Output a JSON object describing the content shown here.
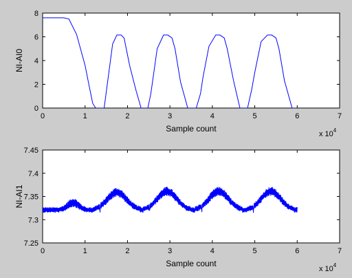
{
  "colors": {
    "background": "#cccccc",
    "axes": "#ffffff",
    "series": "#0000ff",
    "text": "#000000"
  },
  "chart_data": [
    {
      "type": "line",
      "ylabel": "NI-AI0",
      "xlabel": "Sample count",
      "x_multiplier": {
        "base": "x 10",
        "exponent": "4"
      },
      "xlim": [
        0,
        7
      ],
      "ylim": [
        0,
        8
      ],
      "xticks": [
        0,
        1,
        2,
        3,
        4,
        5,
        6,
        7
      ],
      "xtick_labels": [
        "0",
        "1",
        "2",
        "3",
        "4",
        "5",
        "6",
        "7"
      ],
      "yticks": [
        0,
        2,
        4,
        6,
        8
      ],
      "ytick_labels": [
        "0",
        "2",
        "4",
        "6",
        "8"
      ],
      "grid": false,
      "series": [
        {
          "x": [
            0,
            0.5,
            0.62,
            0.8,
            1.0,
            1.1,
            1.18,
            1.25,
            1.3,
            1.45,
            1.65,
            1.75,
            1.85,
            1.92,
            2.05,
            2.2,
            2.32,
            2.38,
            2.48,
            2.55,
            2.7,
            2.85,
            2.95,
            3.05,
            3.12,
            3.25,
            3.42,
            3.55,
            3.62,
            3.72,
            3.78,
            3.92,
            4.08,
            4.18,
            4.28,
            4.35,
            4.5,
            4.65,
            4.77,
            4.83,
            4.93,
            5.0,
            5.15,
            5.3,
            5.4,
            5.5,
            5.57,
            5.7,
            5.88,
            5.9,
            5.98
          ],
          "y": [
            7.6,
            7.6,
            7.5,
            6.2,
            3.6,
            1.8,
            0.4,
            0.0,
            0.0,
            0.0,
            5.4,
            6.15,
            6.15,
            5.9,
            3.6,
            1.5,
            0.0,
            0.0,
            0.0,
            1.2,
            5.0,
            6.15,
            6.15,
            5.9,
            5.0,
            2.2,
            0.0,
            0.0,
            0.0,
            1.2,
            2.6,
            5.2,
            6.15,
            6.15,
            5.9,
            5.0,
            2.3,
            0.0,
            0.0,
            0.0,
            1.6,
            3.0,
            5.6,
            6.15,
            6.15,
            5.9,
            5.0,
            2.3,
            0.0,
            0.0,
            0.0
          ]
        }
      ]
    },
    {
      "type": "line",
      "ylabel": "NI-AI1",
      "xlabel": "Sample count",
      "x_multiplier": {
        "base": "x 10",
        "exponent": "4"
      },
      "xlim": [
        0,
        7
      ],
      "ylim": [
        7.25,
        7.45
      ],
      "xticks": [
        0,
        1,
        2,
        3,
        4,
        5,
        6,
        7
      ],
      "xtick_labels": [
        "0",
        "1",
        "2",
        "3",
        "4",
        "5",
        "6",
        "7"
      ],
      "yticks": [
        7.25,
        7.3,
        7.35,
        7.4,
        7.45
      ],
      "ytick_labels": [
        "7.25",
        "7.3",
        "7.35",
        "7.4",
        "7.45"
      ],
      "grid": false,
      "series": [
        {
          "x_range": [
            0,
            6
          ],
          "baseline": 7.321,
          "peaks": [
            {
              "x": 0.72,
              "height": 0.016,
              "width": 0.2
            },
            {
              "x": 1.75,
              "height": 0.038,
              "width": 0.35
            },
            {
              "x": 2.93,
              "height": 0.04,
              "width": 0.35
            },
            {
              "x": 4.15,
              "height": 0.04,
              "width": 0.35
            },
            {
              "x": 5.38,
              "height": 0.04,
              "width": 0.35
            }
          ],
          "dips": [
            {
              "x": 1.35,
              "depth": 0.012
            },
            {
              "x": 2.52,
              "depth": 0.01
            },
            {
              "x": 3.75,
              "depth": 0.012
            },
            {
              "x": 4.97,
              "depth": 0.01
            }
          ],
          "band": 0.006,
          "band_peak": 0.01
        }
      ]
    }
  ]
}
